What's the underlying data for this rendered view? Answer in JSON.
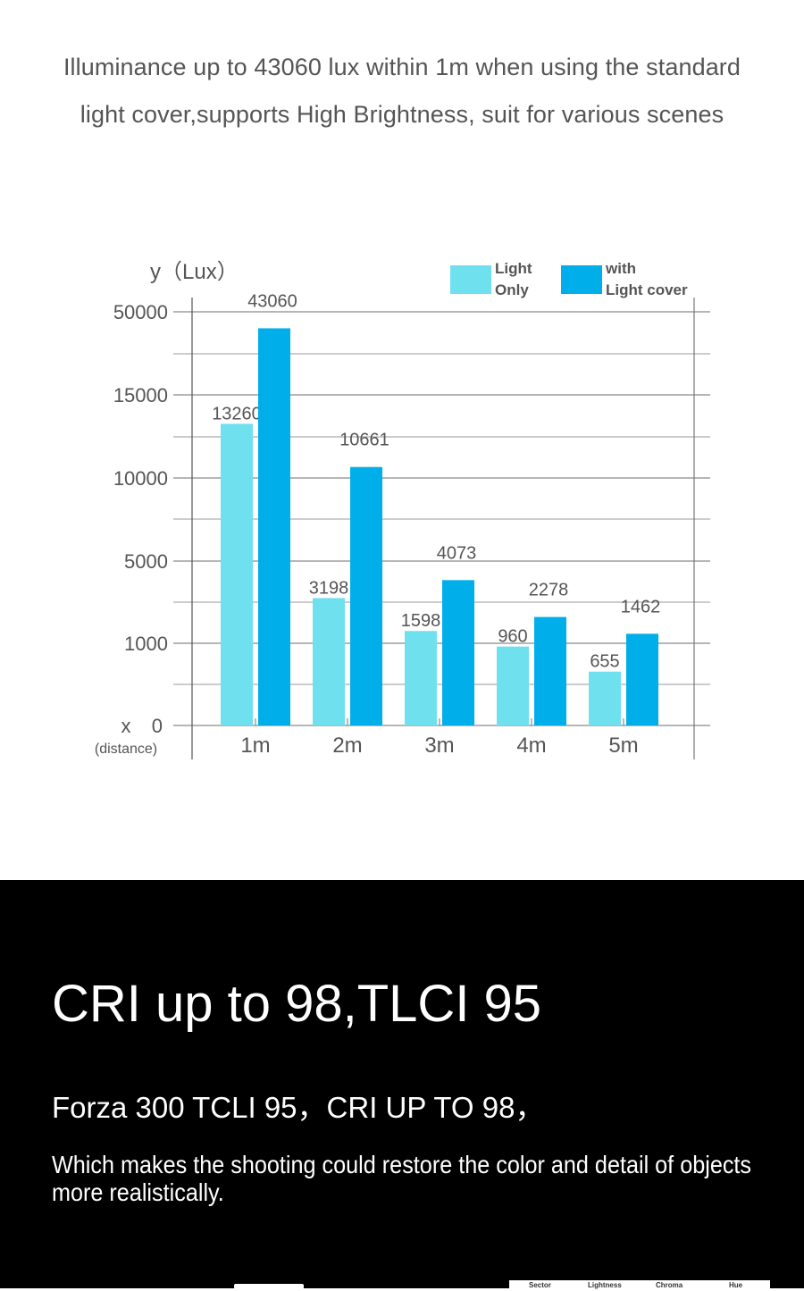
{
  "header": {
    "line1": "Illuminance up to 43060 lux within 1m when using the standard",
    "line2": "light cover,supports High Brightness, suit for various scenes"
  },
  "chart_data": {
    "type": "bar",
    "ylabel": "y（Lux）",
    "xlabel": "x",
    "xlabel_note": "(distance)",
    "categories": [
      "1m",
      "2m",
      "3m",
      "4m",
      "5m"
    ],
    "yticks": [
      "50000",
      "15000",
      "10000",
      "5000",
      "1000",
      "0"
    ],
    "series": [
      {
        "name": "Light Only",
        "legend_lines": [
          "Light",
          "Only"
        ],
        "color": "#6fe0ee",
        "values": [
          13260,
          3198,
          1598,
          960,
          655
        ]
      },
      {
        "name": "with Light cover",
        "legend_lines": [
          "with",
          "Light cover"
        ],
        "color": "#00aeea",
        "values": [
          43060,
          10661,
          4073,
          2278,
          1462
        ]
      }
    ],
    "grid": true,
    "legend_position": "top-right",
    "value_labels": true
  },
  "cri": {
    "title": "CRI up to 98,TLCI 95",
    "subtitle": "Forza 300 TCLI 95，CRI UP TO 98，",
    "description": "Which makes the shooting could restore the color and detail of objects more realistically."
  },
  "thumbnail": {
    "labels": [
      "Sector",
      "Lightness",
      "Chroma",
      "Hue"
    ]
  }
}
